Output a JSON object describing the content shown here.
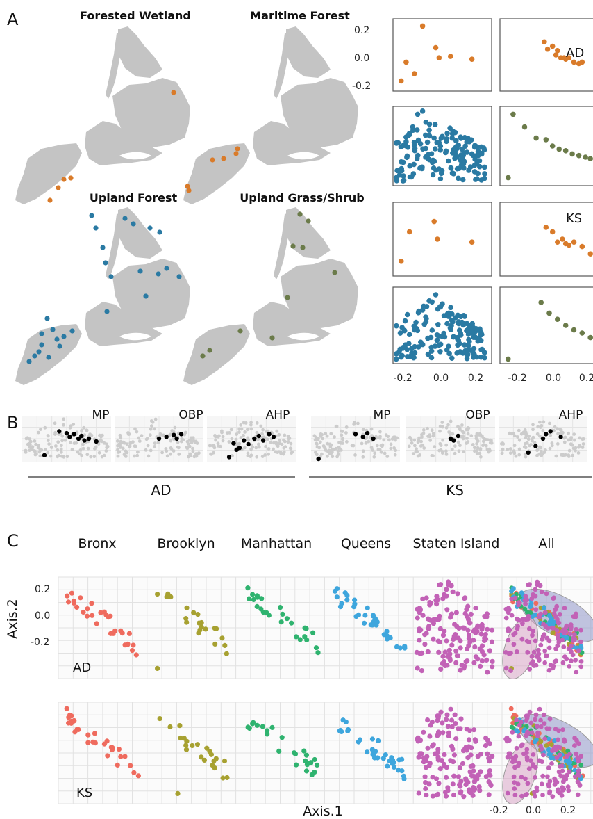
{
  "panels": {
    "a": {
      "letter": "A",
      "maps": [
        {
          "title": "Forested Wetland",
          "color": "#d97b2a"
        },
        {
          "title": "Maritime Forest",
          "color": "#d97b2a"
        },
        {
          "title": "Upland Forest",
          "color": "#2a7aa3"
        },
        {
          "title": "Upland Grass/Shrub",
          "color": "#6b7b4a"
        }
      ],
      "facets": [
        "AD",
        "KS"
      ],
      "y_ticks": [
        "0.2",
        "0.0",
        "-0.2"
      ],
      "x_ticks": [
        "-0.2",
        "0.0",
        "0.2"
      ]
    },
    "b": {
      "letter": "B",
      "groups": [
        "AD",
        "KS"
      ],
      "subpanels": [
        "MP",
        "OBP",
        "AHP"
      ]
    },
    "c": {
      "letter": "C",
      "boroughs": [
        "Bronx",
        "Brooklyn",
        "Manhattan",
        "Queens",
        "Staten Island",
        "All"
      ],
      "rows": [
        "AD",
        "KS"
      ],
      "x_title": "Axis.1",
      "y_title": "Axis.2",
      "y_ticks": [
        "0.2",
        "0.0",
        "-0.2"
      ],
      "x_ticks": [
        "-0.2",
        "0.0",
        "0.2"
      ]
    }
  },
  "chart_data": [
    {
      "type": "scatter",
      "panel": "A-ordination",
      "xlim": [
        -0.3,
        0.3
      ],
      "ylim": [
        -0.25,
        0.25
      ],
      "facets": [
        "AD",
        "KS"
      ],
      "series": [
        {
          "name": "Forested Wetland",
          "color": "#d97b2a",
          "facet": "AD",
          "x": [
            -0.25,
            -0.22,
            -0.17,
            -0.12,
            -0.04,
            -0.02,
            0.05,
            0.18
          ],
          "y": [
            -0.18,
            -0.05,
            -0.13,
            0.2,
            0.05,
            -0.02,
            -0.01,
            -0.03
          ]
        },
        {
          "name": "Maritime Forest",
          "color": "#d97b2a",
          "facet": "AD",
          "x": [
            -0.03,
            -0.01,
            0.02,
            0.04,
            0.07,
            0.1,
            0.12,
            0.15,
            0.18,
            0.2,
            0.05,
            0.09
          ],
          "y": [
            0.09,
            0.04,
            0.06,
            0.0,
            -0.02,
            -0.03,
            -0.02,
            -0.05,
            -0.06,
            -0.05,
            0.03,
            -0.02
          ]
        },
        {
          "name": "Upland Forest",
          "color": "#2a7aa3",
          "facet": "AD",
          "x": [
            -0.28,
            -0.25,
            -0.22,
            -0.2,
            -0.18,
            -0.15,
            -0.12,
            -0.1,
            -0.08,
            -0.05,
            -0.02,
            0.0,
            0.03,
            0.06,
            0.09,
            0.12,
            0.15,
            0.18,
            0.21,
            0.24
          ],
          "y": [
            -0.2,
            -0.1,
            0.0,
            0.08,
            0.12,
            0.2,
            0.22,
            0.15,
            0.1,
            0.05,
            0.02,
            0.06,
            0.08,
            0.05,
            0.0,
            -0.02,
            -0.04,
            -0.05,
            -0.06,
            -0.05
          ]
        },
        {
          "name": "Upland Grass/Shrub",
          "color": "#6b7b4a",
          "facet": "AD",
          "x": [
            -0.22,
            -0.15,
            -0.08,
            -0.02,
            0.02,
            0.06,
            0.1,
            0.14,
            0.18,
            0.22,
            0.25,
            -0.25
          ],
          "y": [
            0.2,
            0.12,
            0.05,
            0.04,
            0.0,
            -0.02,
            -0.03,
            -0.05,
            -0.06,
            -0.07,
            -0.08,
            -0.2
          ]
        },
        {
          "name": "Forested Wetland",
          "color": "#d97b2a",
          "facet": "KS",
          "x": [
            -0.25,
            -0.2,
            -0.05,
            -0.03,
            0.18
          ],
          "y": [
            -0.15,
            0.05,
            0.12,
            0.0,
            -0.02
          ]
        },
        {
          "name": "Maritime Forest",
          "color": "#d97b2a",
          "facet": "KS",
          "x": [
            -0.02,
            0.02,
            0.05,
            0.08,
            0.1,
            0.12,
            0.15,
            0.2,
            0.25
          ],
          "y": [
            0.08,
            0.05,
            -0.02,
            0.0,
            -0.03,
            -0.04,
            -0.02,
            -0.05,
            -0.1
          ]
        },
        {
          "name": "Upland Forest",
          "color": "#2a7aa3",
          "facet": "KS",
          "x": [
            -0.28,
            -0.24,
            -0.2,
            -0.16,
            -0.12,
            -0.08,
            -0.04,
            0.0,
            0.04,
            0.08,
            0.12,
            0.16,
            0.2,
            0.24
          ],
          "y": [
            -0.22,
            -0.15,
            -0.06,
            0.02,
            0.1,
            0.16,
            0.2,
            0.14,
            0.08,
            0.05,
            0.02,
            -0.02,
            -0.04,
            -0.06
          ]
        },
        {
          "name": "Upland Grass/Shrub",
          "color": "#6b7b4a",
          "facet": "KS",
          "x": [
            -0.25,
            -0.05,
            0.0,
            0.05,
            0.1,
            0.15,
            0.2,
            0.25
          ],
          "y": [
            -0.22,
            0.15,
            0.08,
            0.04,
            0.0,
            -0.03,
            -0.05,
            -0.08
          ]
        }
      ]
    },
    {
      "type": "scatter",
      "panel": "B",
      "groups": [
        "AD",
        "KS"
      ],
      "subpanels": [
        "MP",
        "OBP",
        "AHP"
      ],
      "highlight_color": "#000000",
      "background_color": "#cccccc",
      "highlighted": {
        "AD": {
          "MP": {
            "x": [
              -0.15,
              -0.05,
              0.0,
              0.02,
              0.05,
              0.08,
              0.1,
              0.12,
              0.15,
              0.2
            ],
            "y": [
              -0.18,
              0.08,
              0.06,
              0.02,
              0.05,
              0.0,
              0.03,
              -0.02,
              0.0,
              -0.03
            ]
          },
          "OBP": {
            "x": [
              0.0,
              0.05,
              0.1,
              0.12,
              0.15
            ],
            "y": [
              0.0,
              0.02,
              0.04,
              0.0,
              0.05
            ]
          },
          "AHP": {
            "x": [
              -0.15,
              -0.1,
              -0.12,
              -0.08,
              -0.05,
              -0.02,
              0.02,
              0.05,
              0.08,
              0.12,
              0.15
            ],
            "y": [
              -0.2,
              -0.12,
              -0.05,
              -0.1,
              -0.02,
              -0.06,
              0.0,
              0.03,
              -0.02,
              0.05,
              0.02
            ]
          }
        },
        "KS": {
          "MP": {
            "x": [
              -0.25,
              0.0,
              0.05,
              0.08,
              0.12
            ],
            "y": [
              -0.22,
              0.05,
              0.02,
              0.06,
              0.0
            ]
          },
          "OBP": {
            "x": [
              0.0,
              0.02,
              0.05
            ],
            "y": [
              0.0,
              -0.02,
              0.03
            ]
          },
          "AHP": {
            "x": [
              -0.1,
              -0.05,
              0.0,
              0.02,
              0.05,
              0.12
            ],
            "y": [
              -0.15,
              -0.08,
              0.0,
              0.05,
              0.08,
              0.02
            ]
          }
        }
      }
    },
    {
      "type": "scatter",
      "panel": "C",
      "xlabel": "Axis.1",
      "ylabel": "Axis.2",
      "xlim": [
        -0.3,
        0.3
      ],
      "ylim": [
        -0.25,
        0.25
      ],
      "rows": [
        "AD",
        "KS"
      ],
      "series": [
        {
          "name": "Bronx",
          "color": "#ef6b5e"
        },
        {
          "name": "Brooklyn",
          "color": "#a7a131"
        },
        {
          "name": "Manhattan",
          "color": "#2fb36f"
        },
        {
          "name": "Queens",
          "color": "#3ea6dd"
        },
        {
          "name": "Staten Island",
          "color": "#c262b6"
        }
      ]
    }
  ]
}
